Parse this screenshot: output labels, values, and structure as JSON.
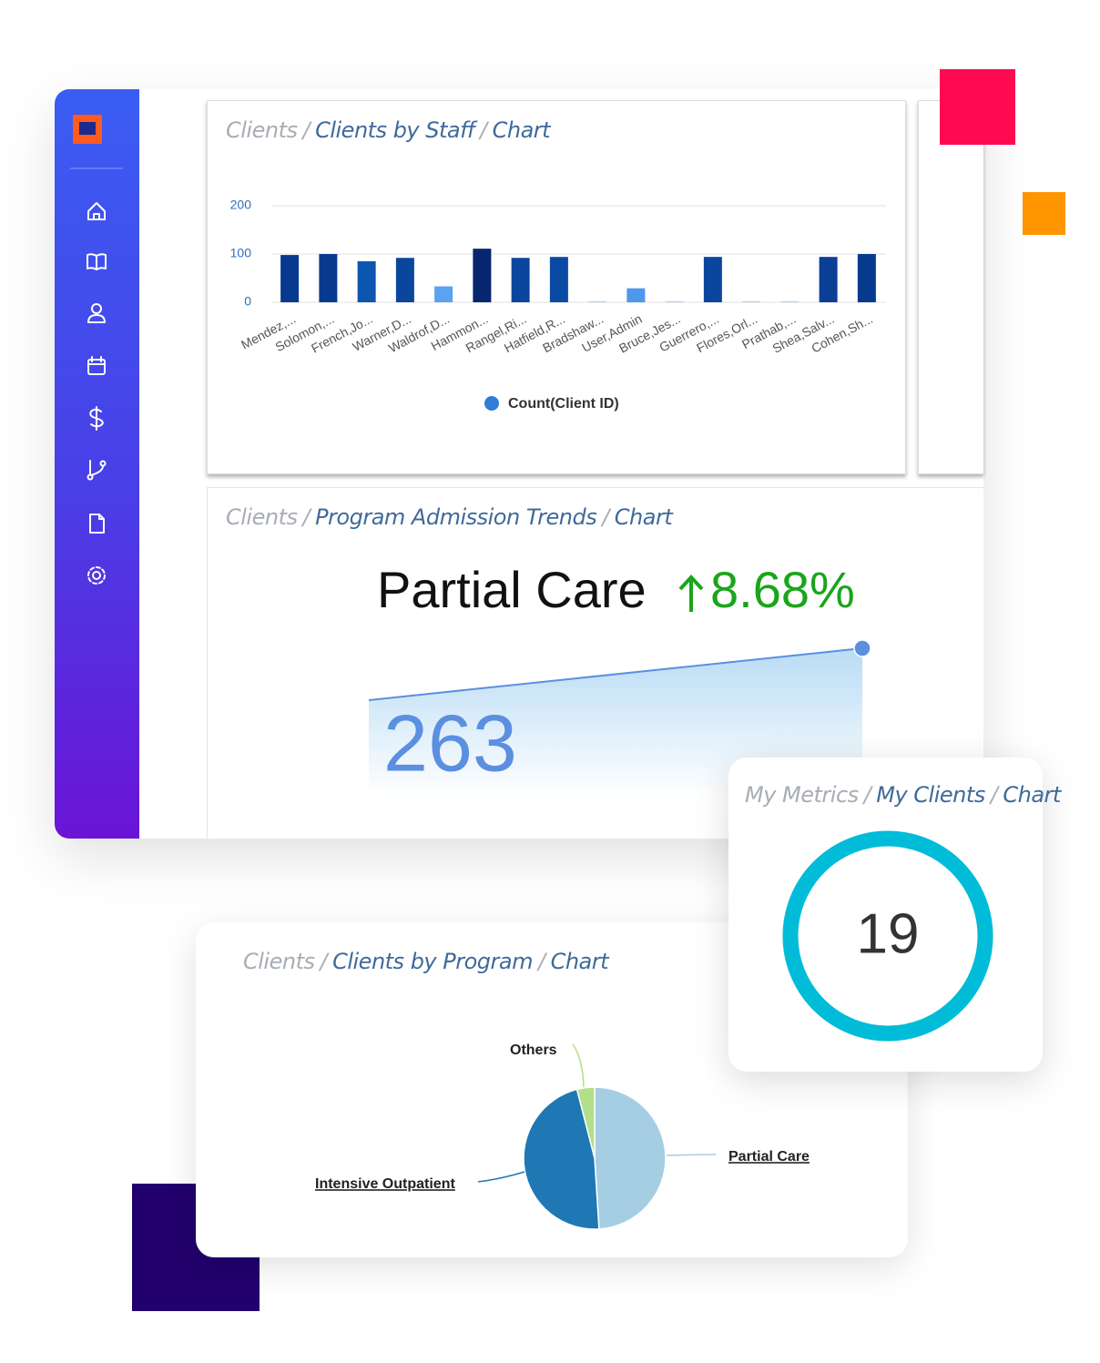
{
  "separator": "/",
  "staff_panel": {
    "breadcrumb": [
      "Clients",
      "Clients by Staff",
      "Chart"
    ],
    "chart_data": {
      "type": "bar",
      "categories": [
        "Mendez,...",
        "Solomon,...",
        "French,Jo...",
        "Warner,D...",
        "Waldrof,D...",
        "Hammon...",
        "Rangel,Ri...",
        "Hatfield,R...",
        "Bradshaw...",
        "User,Admin",
        "Bruce,Jes...",
        "Guerrero,...",
        "Flores,Orl...",
        "Prathab,...",
        "Shea,Salv...",
        "Cohen,Sh..."
      ],
      "series": [
        {
          "name": "Count(Client ID)",
          "color": "#2f7ed8",
          "values": [
            98,
            100,
            85,
            92,
            33,
            111,
            92,
            94,
            2,
            29,
            2,
            94,
            2,
            2,
            94,
            100
          ],
          "point_colors": [
            "#073a8f",
            "#073a8f",
            "#0d56b0",
            "#0a469e",
            "#5aa2f2",
            "#06266f",
            "#0a469e",
            "#0a4aa3",
            "#a8d0f5",
            "#4f97ec",
            "#a8d0f5",
            "#0a469e",
            "#a8d0f5",
            "#a8d0f5",
            "#0a3f96",
            "#073a8f"
          ]
        }
      ],
      "ylim": [
        0,
        200
      ],
      "yticks": [
        0,
        100,
        200
      ],
      "grid": true
    }
  },
  "trend_panel": {
    "breadcrumb": [
      "Clients",
      "Program Admission Trends",
      "Chart"
    ],
    "program": "Partial Care",
    "change": "8.68%",
    "total": "263"
  },
  "metrics_panel": {
    "breadcrumb": [
      "My Metrics",
      "My Clients",
      "Chart"
    ],
    "count": "19"
  },
  "program_panel": {
    "breadcrumb": [
      "Clients",
      "Clients by Program",
      "Chart"
    ],
    "chart_data": {
      "type": "pie",
      "categories": [
        "Partial Care",
        "Intensive Outpatient",
        "Others"
      ],
      "values": [
        49,
        47,
        4
      ],
      "colors": [
        "#a6cee3",
        "#1f78b4",
        "#b2df8a"
      ]
    }
  }
}
